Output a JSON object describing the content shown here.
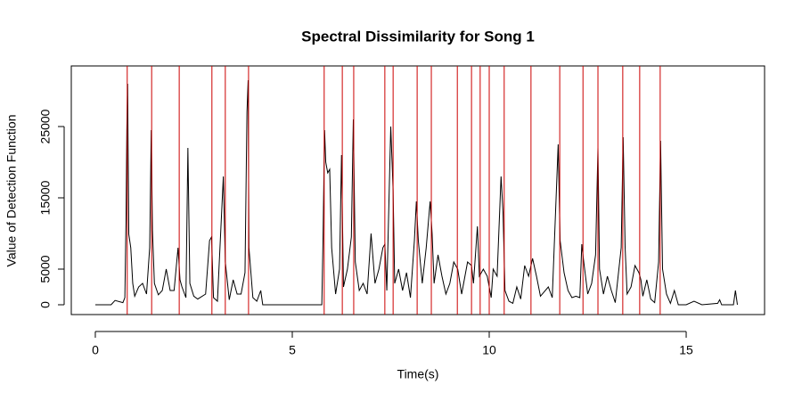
{
  "chart_data": {
    "type": "line",
    "title": "Spectral Dissimilarity for Song 1",
    "x_label": "Time(s)",
    "y_label": "Value of Detection Function",
    "x": [
      0,
      0.4,
      0.5,
      0.7,
      0.75,
      0.78,
      0.8,
      0.82,
      0.85,
      0.9,
      0.95,
      1.0,
      1.1,
      1.2,
      1.3,
      1.38,
      1.42,
      1.45,
      1.5,
      1.6,
      1.7,
      1.8,
      1.9,
      2.0,
      2.1,
      2.15,
      2.2,
      2.3,
      2.35,
      2.4,
      2.5,
      2.6,
      2.8,
      2.9,
      2.95,
      3.0,
      3.1,
      3.25,
      3.3,
      3.4,
      3.5,
      3.6,
      3.7,
      3.8,
      3.85,
      3.88,
      3.9,
      4.0,
      4.1,
      4.2,
      4.25,
      5.75,
      5.78,
      5.82,
      5.85,
      5.9,
      5.95,
      6.0,
      6.1,
      6.2,
      6.25,
      6.3,
      6.4,
      6.5,
      6.55,
      6.6,
      6.7,
      6.8,
      6.9,
      7.0,
      7.1,
      7.2,
      7.3,
      7.35,
      7.4,
      7.5,
      7.56,
      7.6,
      7.7,
      7.8,
      7.9,
      8.0,
      8.1,
      8.15,
      8.2,
      8.3,
      8.4,
      8.5,
      8.55,
      8.6,
      8.7,
      8.8,
      8.9,
      9.0,
      9.1,
      9.2,
      9.3,
      9.45,
      9.55,
      9.6,
      9.7,
      9.75,
      9.85,
      9.95,
      10.05,
      10.1,
      10.2,
      10.3,
      10.35,
      10.4,
      10.5,
      10.6,
      10.7,
      10.8,
      10.9,
      11.0,
      11.1,
      11.2,
      11.3,
      11.5,
      11.6,
      11.75,
      11.8,
      11.9,
      12.0,
      12.1,
      12.2,
      12.3,
      12.35,
      12.4,
      12.5,
      12.6,
      12.7,
      12.76,
      12.8,
      12.9,
      13.0,
      13.1,
      13.2,
      13.35,
      13.4,
      13.45,
      13.5,
      13.6,
      13.7,
      13.8,
      13.85,
      13.9,
      14.0,
      14.1,
      14.2,
      14.3,
      14.35,
      14.4,
      14.5,
      14.6,
      14.7,
      14.8,
      15.0,
      15.2,
      15.4,
      15.8,
      15.85,
      15.9,
      16.2,
      16.25,
      16.3
    ],
    "series": [
      {
        "color": "#000000",
        "values": [
          0,
          0,
          600,
          300,
          1000,
          12000,
          24500,
          31000,
          9900,
          8000,
          3000,
          1200,
          2500,
          3000,
          1500,
          8000,
          24500,
          10500,
          3000,
          1400,
          2000,
          5000,
          2000,
          2000,
          8000,
          3500,
          2500,
          1000,
          22000,
          3000,
          1200,
          800,
          1500,
          9000,
          9500,
          1000,
          500,
          18000,
          6000,
          700,
          3500,
          1500,
          1500,
          4500,
          27000,
          31500,
          8000,
          1000,
          500,
          2000,
          0,
          0,
          9000,
          24500,
          20000,
          18500,
          19000,
          8000,
          1500,
          5000,
          21000,
          2500,
          5000,
          9500,
          26000,
          6000,
          2000,
          3000,
          1500,
          10000,
          3000,
          5000,
          8000,
          8500,
          2000,
          25000,
          16000,
          3000,
          5000,
          2000,
          4500,
          1000,
          9000,
          14500,
          9000,
          3000,
          8000,
          14500,
          10000,
          3000,
          7000,
          4000,
          1500,
          3000,
          6000,
          5000,
          1500,
          6000,
          5500,
          3000,
          11000,
          4000,
          5000,
          4000,
          1000,
          5000,
          4000,
          18000,
          13000,
          2000,
          500,
          200,
          2500,
          800,
          5500,
          4000,
          6500,
          4000,
          1200,
          2500,
          1000,
          22500,
          9000,
          4500,
          2000,
          1000,
          1200,
          1000,
          8500,
          6000,
          1500,
          3000,
          7000,
          22000,
          5000,
          1500,
          4000,
          2000,
          300,
          8000,
          23500,
          8000,
          1500,
          2500,
          5500,
          4500,
          3500,
          1200,
          3500,
          800,
          300,
          6000,
          23000,
          5000,
          1500,
          200,
          2000,
          0,
          0,
          500,
          0,
          200,
          700,
          0,
          0,
          2000,
          0
        ]
      }
    ],
    "onsets": [
      0.81,
      1.43,
      2.13,
      2.96,
      3.3,
      3.89,
      5.81,
      6.27,
      6.56,
      7.35,
      7.56,
      8.17,
      8.53,
      9.19,
      9.55,
      9.77,
      10.0,
      10.38,
      11.06,
      11.79,
      12.38,
      12.76,
      13.39,
      13.82,
      14.34
    ],
    "onset_color": "#cc0000",
    "xlim": [
      -0.61,
      16.99
    ],
    "ylim": [
      -1375,
      33500
    ],
    "xticks": [
      0,
      5,
      10,
      15
    ],
    "yticks": [
      0,
      5000,
      15000,
      25000
    ]
  }
}
